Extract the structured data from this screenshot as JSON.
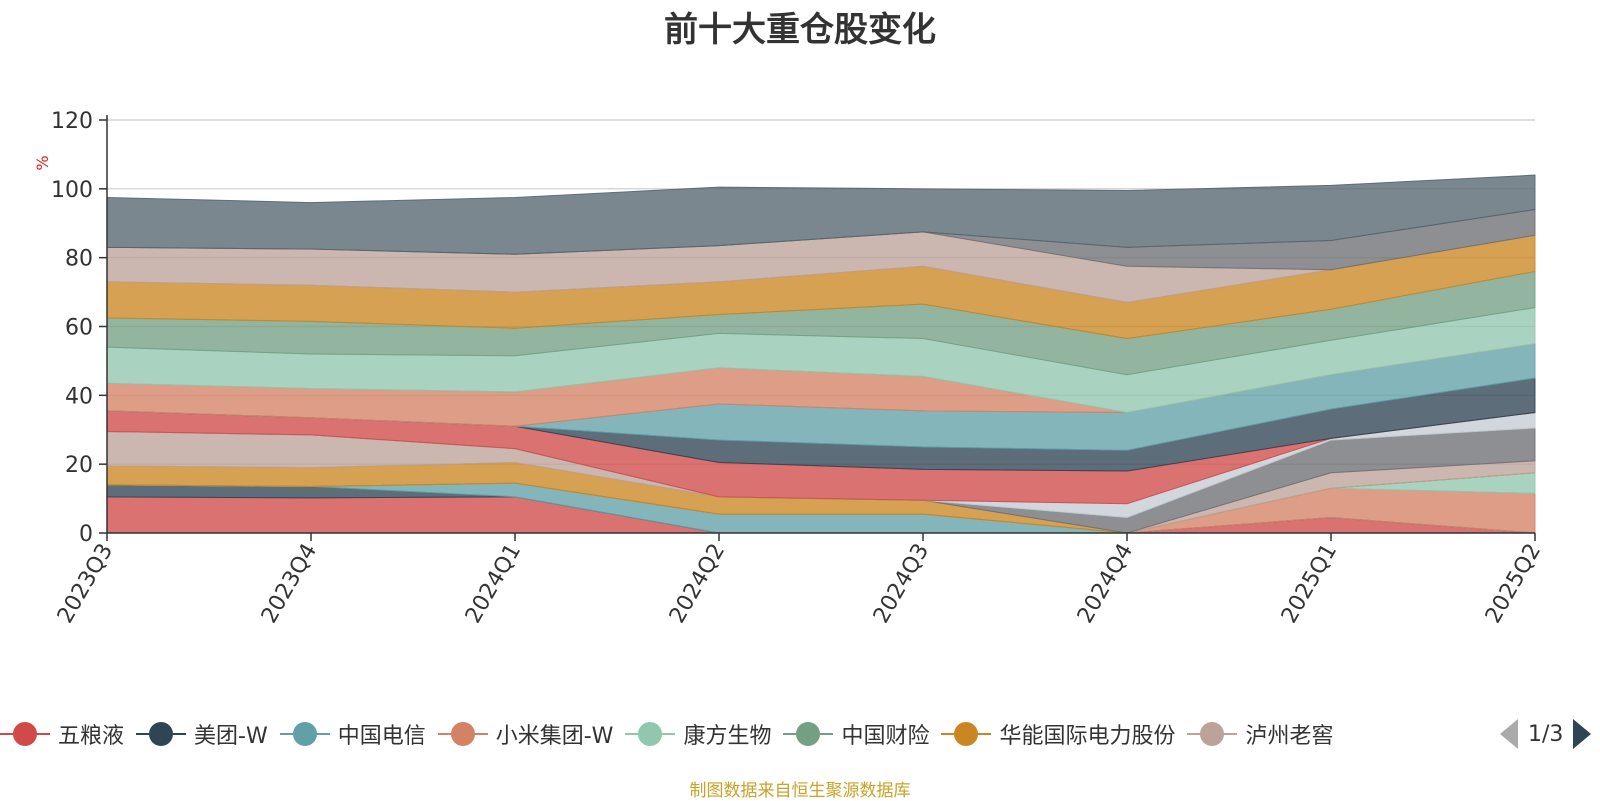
{
  "chart_data": {
    "type": "area",
    "stacked": true,
    "title": "前十大重仓股变化",
    "ylabel": "%",
    "ylim": [
      0,
      120
    ],
    "yticks": [
      0,
      20,
      40,
      60,
      80,
      100,
      120
    ],
    "grid": true,
    "categories": [
      "2023Q3",
      "2023Q4",
      "2024Q1",
      "2024Q2",
      "2024Q3",
      "2024Q4",
      "2025Q1",
      "2025Q2"
    ],
    "series": [
      {
        "name": "五粮液",
        "color": "#d14a4a",
        "values": [
          10.5,
          10.2,
          10.5,
          0,
          0,
          0,
          4.5,
          0
        ]
      },
      {
        "name": "美团-W",
        "color": "#2f4554",
        "values": [
          3.5,
          3.3,
          0,
          0,
          0,
          0,
          0,
          0
        ]
      },
      {
        "name": "中国电信",
        "color": "#61a0a8",
        "values": [
          0,
          0,
          4,
          5.5,
          5.5,
          0,
          0,
          0
        ]
      },
      {
        "name": "小米集团-W",
        "color": "#d48265",
        "values": [
          0,
          0,
          0,
          0,
          0,
          0,
          8.5,
          11.5
        ]
      },
      {
        "name": "康方生物",
        "color": "#91c7ae",
        "values": [
          0,
          0,
          0,
          0,
          0,
          0,
          0,
          6
        ]
      },
      {
        "name": "中国财险",
        "color": "#749f83",
        "values": [
          0,
          0,
          0,
          0,
          0,
          0,
          0,
          0
        ]
      },
      {
        "name": "华能国际电力股份",
        "color": "#ca8622",
        "values": [
          5.5,
          5.5,
          6,
          5,
          4,
          0,
          0,
          0
        ]
      },
      {
        "name": "泸州老窖",
        "color": "#bda29a",
        "values": [
          10,
          9.5,
          4,
          0,
          0,
          0,
          4.5,
          3.5
        ]
      },
      {
        "name": "",
        "color": "#6e7074",
        "values": [
          0,
          0,
          0,
          0,
          0,
          4.5,
          9.5,
          9.5
        ]
      },
      {
        "name": "",
        "color": "#c4ccd3",
        "values": [
          0,
          0,
          0,
          0,
          0,
          4,
          0.5,
          4.5
        ]
      },
      {
        "name": "",
        "color": "#d14a4a",
        "values": [
          6,
          5,
          6.5,
          10,
          9,
          9.5,
          0,
          0
        ]
      },
      {
        "name": "",
        "color": "#2f4554",
        "values": [
          0,
          0,
          0,
          6.5,
          6.5,
          6,
          8.5,
          10
        ]
      },
      {
        "name": "",
        "color": "#61a0a8",
        "values": [
          0,
          0,
          0,
          10.5,
          10.5,
          11,
          10,
          10
        ]
      },
      {
        "name": "",
        "color": "#d48265",
        "values": [
          8,
          8.5,
          10,
          10.5,
          10,
          0,
          0,
          0
        ]
      },
      {
        "name": "",
        "color": "#91c7ae",
        "values": [
          10.5,
          10,
          10.5,
          10,
          11,
          11,
          10,
          10.5
        ]
      },
      {
        "name": "",
        "color": "#749f83",
        "values": [
          8.5,
          9.5,
          8,
          5.5,
          10,
          10.5,
          9,
          10.5
        ]
      },
      {
        "name": "",
        "color": "#ca8622",
        "values": [
          10.5,
          10.5,
          10.5,
          9.5,
          11,
          10.5,
          11.5,
          10.5
        ]
      },
      {
        "name": "",
        "color": "#bda29a",
        "values": [
          10,
          10.5,
          11,
          10.5,
          10,
          10.5,
          0,
          0
        ]
      },
      {
        "name": "",
        "color": "#6e7074",
        "values": [
          0,
          0,
          0,
          0,
          0,
          5.5,
          8.5,
          7.5
        ]
      },
      {
        "name": "",
        "color": "#546570",
        "values": [
          14.5,
          13.5,
          16.5,
          17,
          12.5,
          16.5,
          16,
          10
        ]
      }
    ]
  },
  "legend": {
    "items": [
      {
        "label": "五粮液",
        "color": "#d14a4a"
      },
      {
        "label": "美团-W",
        "color": "#2f4554"
      },
      {
        "label": "中国电信",
        "color": "#61a0a8"
      },
      {
        "label": "小米集团-W",
        "color": "#d48265"
      },
      {
        "label": "康方生物",
        "color": "#91c7ae"
      },
      {
        "label": "中国财险",
        "color": "#749f83"
      },
      {
        "label": "华能国际电力股份",
        "color": "#ca8622"
      },
      {
        "label": "泸州老窖",
        "color": "#bda29a"
      }
    ],
    "page": "1/3"
  },
  "source": "制图数据来自恒生聚源数据库"
}
